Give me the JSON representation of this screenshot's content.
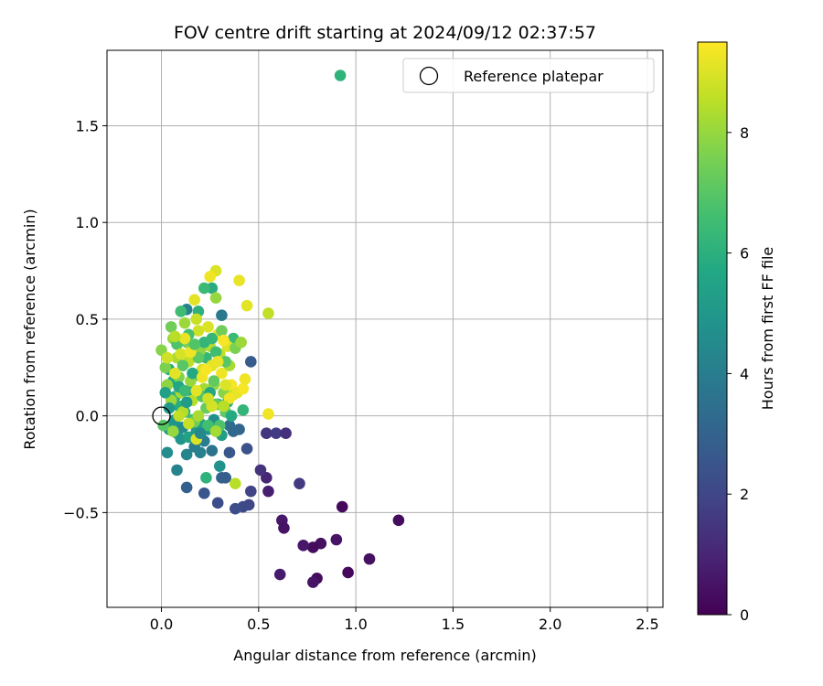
{
  "chart_data": {
    "type": "scatter",
    "title": "FOV centre drift starting at 2024/09/12 02:37:57",
    "xlabel": "Angular distance from reference (arcmin)",
    "ylabel": "Rotation from reference (arcmin)",
    "xlim": [
      -0.28,
      2.58
    ],
    "ylim": [
      -0.99,
      1.89
    ],
    "x_ticks": [
      0.0,
      0.5,
      1.0,
      1.5,
      2.0,
      2.5
    ],
    "x_tick_labels": [
      "0.0",
      "0.5",
      "1.0",
      "1.5",
      "2.0",
      "2.5"
    ],
    "y_ticks": [
      -0.5,
      0.0,
      0.5,
      1.0,
      1.5
    ],
    "y_tick_labels": [
      "−0.5",
      "0.0",
      "0.5",
      "1.0",
      "1.5"
    ],
    "grid": true,
    "legend": {
      "position": "top-right",
      "entries": [
        {
          "label": "Reference platepar",
          "marker": "open-circle",
          "x": 0.0,
          "y": 0.0
        }
      ]
    },
    "colorbar": {
      "label": "Hours from first FF file",
      "range": [
        0,
        9.5
      ],
      "ticks": [
        0,
        2,
        4,
        6,
        8
      ],
      "tick_labels": [
        "0",
        "2",
        "4",
        "6",
        "8"
      ],
      "colormap": "viridis"
    },
    "points": [
      [
        0.93,
        -0.47,
        0.2
      ],
      [
        1.22,
        -0.54,
        0.3
      ],
      [
        1.07,
        -0.74,
        0.4
      ],
      [
        0.96,
        -0.81,
        0.2
      ],
      [
        0.9,
        -0.64,
        0.5
      ],
      [
        0.82,
        -0.66,
        0.4
      ],
      [
        0.78,
        -0.68,
        0.3
      ],
      [
        0.8,
        -0.84,
        0.3
      ],
      [
        0.78,
        -0.86,
        0.5
      ],
      [
        0.73,
        -0.67,
        0.6
      ],
      [
        0.62,
        -0.54,
        0.6
      ],
      [
        0.63,
        -0.58,
        0.5
      ],
      [
        0.61,
        -0.82,
        0.7
      ],
      [
        0.54,
        -0.32,
        1.0
      ],
      [
        0.55,
        -0.39,
        0.8
      ],
      [
        0.51,
        -0.28,
        1.4
      ],
      [
        0.54,
        -0.09,
        1.5
      ],
      [
        0.59,
        -0.09,
        1.7
      ],
      [
        0.64,
        -0.09,
        1.3
      ],
      [
        0.71,
        -0.35,
        1.6
      ],
      [
        0.46,
        -0.39,
        1.9
      ],
      [
        0.45,
        -0.46,
        2.0
      ],
      [
        0.42,
        -0.47,
        2.1
      ],
      [
        0.38,
        -0.48,
        2.3
      ],
      [
        0.29,
        -0.45,
        2.2
      ],
      [
        0.22,
        -0.4,
        2.5
      ],
      [
        0.13,
        -0.37,
        2.9
      ],
      [
        0.44,
        -0.17,
        2.4
      ],
      [
        0.35,
        -0.19,
        2.6
      ],
      [
        0.46,
        0.28,
        2.7
      ],
      [
        0.31,
        -0.32,
        3.0
      ],
      [
        0.33,
        -0.32,
        2.8
      ],
      [
        0.4,
        -0.07,
        3.1
      ],
      [
        0.08,
        -0.28,
        4.2
      ],
      [
        0.03,
        -0.19,
        4.6
      ],
      [
        0.13,
        -0.2,
        4.3
      ],
      [
        0.17,
        -0.16,
        3.9
      ],
      [
        0.22,
        -0.13,
        4.0
      ],
      [
        0.26,
        -0.18,
        3.6
      ],
      [
        0.3,
        -0.26,
        4.8
      ],
      [
        0.35,
        -0.05,
        3.4
      ],
      [
        0.37,
        -0.08,
        3.2
      ],
      [
        0.31,
        0.52,
        3.8
      ],
      [
        0.13,
        0.55,
        4.1
      ],
      [
        0.04,
        -0.07,
        5.0
      ],
      [
        0.06,
        -0.04,
        5.2
      ],
      [
        0.08,
        -0.09,
        5.3
      ],
      [
        0.1,
        -0.12,
        4.9
      ],
      [
        0.14,
        -0.11,
        5.4
      ],
      [
        0.18,
        -0.08,
        5.1
      ],
      [
        0.2,
        -0.04,
        5.5
      ],
      [
        0.24,
        -0.07,
        5.0
      ],
      [
        0.27,
        -0.02,
        4.7
      ],
      [
        0.29,
        0.06,
        5.6
      ],
      [
        0.31,
        -0.1,
        5.3
      ],
      [
        0.04,
        0.24,
        5.8
      ],
      [
        0.06,
        0.18,
        5.7
      ],
      [
        0.07,
        0.1,
        6.0
      ],
      [
        0.09,
        0.05,
        5.9
      ],
      [
        0.12,
        0.02,
        6.2
      ],
      [
        0.15,
        0.13,
        5.8
      ],
      [
        0.19,
        0.21,
        6.1
      ],
      [
        0.23,
        0.3,
        6.3
      ],
      [
        0.26,
        0.66,
        5.9
      ],
      [
        0.22,
        0.66,
        6.4
      ],
      [
        0.1,
        0.54,
        6.5
      ],
      [
        0.19,
        0.54,
        6.0
      ],
      [
        0.42,
        0.03,
        6.2
      ],
      [
        0.23,
        -0.32,
        6.1
      ],
      [
        0.16,
        -0.02,
        6.6
      ],
      [
        0.92,
        1.76,
        6.1
      ],
      [
        0.37,
        0.4,
        6.4
      ],
      [
        0.0,
        0.34,
        7.8
      ],
      [
        0.02,
        0.25,
        7.6
      ],
      [
        0.03,
        0.16,
        7.9
      ],
      [
        0.05,
        0.08,
        8.1
      ],
      [
        0.06,
        0.4,
        8.0
      ],
      [
        0.08,
        0.3,
        8.3
      ],
      [
        0.09,
        0.2,
        7.7
      ],
      [
        0.1,
        0.12,
        8.2
      ],
      [
        0.11,
        0.02,
        8.4
      ],
      [
        0.12,
        0.48,
        8.1
      ],
      [
        0.13,
        0.38,
        7.5
      ],
      [
        0.14,
        0.28,
        8.6
      ],
      [
        0.15,
        0.18,
        8.0
      ],
      [
        0.16,
        0.08,
        8.5
      ],
      [
        0.17,
        -0.03,
        7.4
      ],
      [
        0.18,
        0.5,
        8.7
      ],
      [
        0.19,
        0.44,
        8.8
      ],
      [
        0.2,
        0.34,
        7.9
      ],
      [
        0.21,
        0.24,
        8.9
      ],
      [
        0.22,
        0.14,
        8.2
      ],
      [
        0.23,
        0.04,
        7.3
      ],
      [
        0.24,
        0.46,
        9.0
      ],
      [
        0.25,
        0.36,
        8.4
      ],
      [
        0.26,
        0.26,
        9.1
      ],
      [
        0.27,
        0.16,
        8.0
      ],
      [
        0.28,
        0.06,
        7.2
      ],
      [
        0.29,
        0.42,
        9.2
      ],
      [
        0.3,
        0.32,
        8.6
      ],
      [
        0.31,
        0.22,
        9.3
      ],
      [
        0.32,
        0.12,
        7.8
      ],
      [
        0.33,
        0.02,
        7.1
      ],
      [
        0.34,
        0.36,
        9.0
      ],
      [
        0.35,
        0.26,
        8.3
      ],
      [
        0.36,
        0.16,
        9.4
      ],
      [
        0.37,
        0.11,
        8.8
      ],
      [
        0.38,
        0.35,
        7.6
      ],
      [
        0.39,
        0.12,
        9.2
      ],
      [
        0.41,
        0.38,
        8.1
      ],
      [
        0.42,
        0.14,
        9.4
      ],
      [
        0.43,
        0.19,
        9.3
      ],
      [
        0.44,
        0.57,
        9.1
      ],
      [
        0.4,
        0.7,
        9.2
      ],
      [
        0.28,
        0.75,
        9.0
      ],
      [
        0.25,
        0.72,
        9.3
      ],
      [
        0.28,
        0.61,
        8.0
      ],
      [
        0.17,
        0.6,
        9.1
      ],
      [
        0.55,
        0.53,
        8.6
      ],
      [
        0.55,
        0.01,
        9.3
      ],
      [
        0.38,
        -0.35,
        8.5
      ],
      [
        0.18,
        -0.12,
        9.0
      ],
      [
        0.01,
        -0.05,
        7.0
      ],
      [
        0.05,
        0.46,
        7.4
      ],
      [
        0.08,
        0.37,
        6.8
      ],
      [
        0.11,
        0.26,
        7.0
      ],
      [
        0.14,
        0.42,
        6.7
      ],
      [
        0.19,
        0.3,
        7.1
      ],
      [
        0.21,
        0.1,
        6.9
      ],
      [
        0.24,
        -0.05,
        6.6
      ],
      [
        0.27,
        0.18,
        7.2
      ],
      [
        0.3,
        -0.05,
        6.8
      ],
      [
        0.33,
        0.28,
        7.0
      ],
      [
        0.02,
        0.12,
        5.4
      ],
      [
        0.04,
        0.04,
        5.1
      ],
      [
        0.07,
        -0.02,
        4.9
      ],
      [
        0.09,
        0.15,
        5.6
      ],
      [
        0.11,
        -0.06,
        4.5
      ],
      [
        0.13,
        0.07,
        5.2
      ],
      [
        0.16,
        0.22,
        5.7
      ],
      [
        0.2,
        -0.09,
        4.4
      ],
      [
        0.22,
        0.38,
        6.2
      ],
      [
        0.25,
        0.12,
        5.6
      ],
      [
        0.28,
        0.33,
        6.5
      ],
      [
        0.31,
        0.44,
        7.4
      ],
      [
        0.34,
        0.07,
        6.0
      ],
      [
        0.36,
        0.0,
        5.8
      ],
      [
        0.03,
        0.3,
        8.8
      ],
      [
        0.07,
        0.22,
        9.1
      ],
      [
        0.1,
        0.32,
        8.9
      ],
      [
        0.12,
        0.4,
        9.2
      ],
      [
        0.15,
        0.33,
        9.3
      ],
      [
        0.18,
        0.13,
        9.1
      ],
      [
        0.21,
        0.2,
        9.3
      ],
      [
        0.23,
        0.24,
        9.4
      ],
      [
        0.26,
        0.05,
        8.9
      ],
      [
        0.29,
        0.28,
        9.2
      ],
      [
        0.32,
        0.39,
        9.4
      ],
      [
        0.33,
        0.16,
        9.0
      ],
      [
        0.35,
        0.09,
        9.3
      ],
      [
        0.06,
        -0.08,
        8.0
      ],
      [
        0.09,
        0.0,
        8.6
      ],
      [
        0.14,
        -0.04,
        8.7
      ],
      [
        0.19,
        0.0,
        8.3
      ],
      [
        0.24,
        0.09,
        8.8
      ],
      [
        0.28,
        -0.08,
        8.2
      ],
      [
        0.32,
        0.05,
        8.5
      ],
      [
        0.07,
        0.41,
        8.5
      ],
      [
        0.12,
        0.13,
        6.4
      ],
      [
        0.17,
        0.37,
        6.9
      ],
      [
        0.26,
        0.4,
        6.3
      ],
      [
        0.2,
        -0.19,
        4.1
      ]
    ]
  }
}
